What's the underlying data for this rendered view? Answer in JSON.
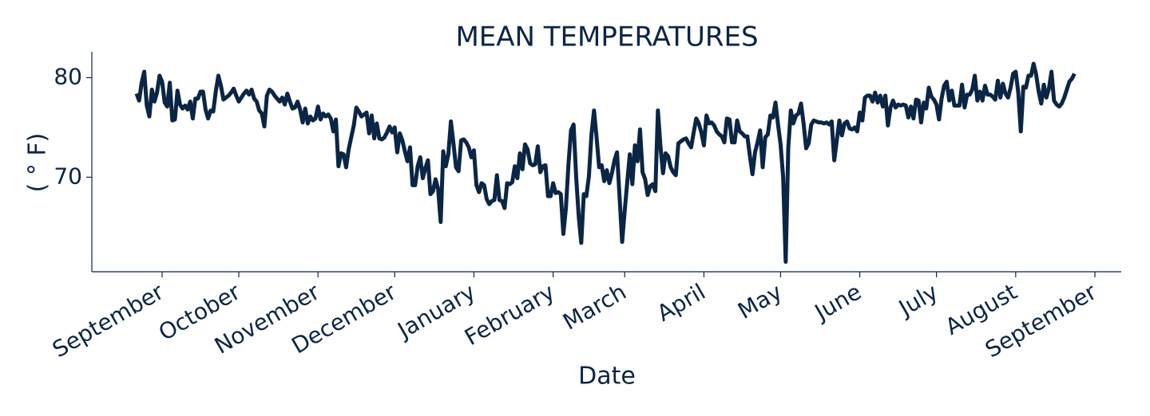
{
  "chart_data": {
    "type": "line",
    "title": "MEAN TEMPERATURES",
    "x_label": "Date",
    "y_label": "( ° F)",
    "color": "#0b2545",
    "x": [
      -10,
      -9,
      -8,
      -7,
      -6,
      -5,
      -4,
      -3,
      -2,
      -1,
      0,
      1,
      2,
      3,
      4,
      5,
      6,
      7,
      8,
      9,
      10,
      11,
      12,
      13,
      14,
      15,
      16,
      17,
      18,
      19,
      20,
      21,
      22,
      23,
      24,
      25,
      26,
      27,
      28,
      29,
      30,
      31,
      32,
      33,
      34,
      35,
      36,
      37,
      38,
      39,
      40,
      41,
      42,
      43,
      44,
      45,
      46,
      47,
      48,
      49,
      50,
      51,
      52,
      53,
      54,
      55,
      56,
      57,
      58,
      59,
      60,
      61,
      62,
      63,
      64,
      65,
      66,
      67,
      68,
      69,
      70,
      71,
      72,
      73,
      74,
      75,
      76,
      77,
      78,
      79,
      80,
      81,
      82,
      83,
      84,
      85,
      86,
      87,
      88,
      89,
      90,
      91,
      92,
      93,
      94,
      95,
      96,
      97,
      98,
      99,
      100,
      101,
      102,
      103,
      104,
      105,
      106,
      107,
      108,
      109,
      110,
      111,
      112,
      113,
      114,
      115,
      116,
      117,
      118,
      119,
      120,
      121,
      122,
      123,
      124,
      125,
      126,
      127,
      128,
      129,
      130,
      131,
      132,
      133,
      134,
      135,
      136,
      137,
      138,
      139,
      140,
      141,
      142,
      143,
      144,
      145,
      146,
      147,
      148,
      149,
      150,
      151,
      152,
      153,
      154,
      155,
      156,
      157,
      158,
      159,
      160,
      161,
      162,
      163,
      164,
      165,
      166,
      167,
      168,
      169,
      170,
      171,
      172,
      173,
      174,
      175,
      176,
      177,
      178,
      179,
      180,
      181,
      182,
      183,
      184,
      185,
      186,
      187,
      188,
      189,
      190,
      191,
      192,
      193,
      194,
      195,
      196,
      197,
      198,
      199,
      200,
      201,
      202,
      203,
      204,
      205,
      206,
      207,
      208,
      209,
      210,
      211,
      212,
      213,
      214,
      215,
      216,
      217,
      218,
      219,
      220,
      221,
      222,
      223,
      224,
      225,
      226,
      227,
      228,
      229,
      230,
      231,
      232,
      233,
      234,
      235,
      236,
      237,
      238,
      239,
      240,
      241,
      242,
      243,
      244,
      245,
      246,
      247,
      248,
      249,
      250,
      251,
      252,
      253,
      254,
      255,
      256,
      257,
      258,
      259,
      260,
      261,
      262,
      263,
      264,
      265,
      266,
      267,
      268,
      269,
      270,
      271,
      272,
      273,
      274,
      275,
      276,
      277,
      278,
      279,
      280,
      281,
      282,
      283,
      284,
      285,
      286,
      287,
      288,
      289,
      290,
      291,
      292,
      293,
      294,
      295,
      296,
      297,
      298,
      299,
      300,
      301,
      302,
      303,
      304,
      305,
      306,
      307,
      308,
      309,
      310,
      311,
      312,
      313,
      314,
      315,
      316,
      317,
      318,
      319,
      320,
      321,
      322,
      323,
      324,
      325,
      326,
      327,
      328,
      329,
      330,
      331,
      332,
      333,
      334,
      335,
      336,
      337,
      338,
      339,
      340,
      341,
      342,
      343,
      344,
      345,
      346,
      347,
      348,
      349,
      350,
      351,
      352,
      353,
      354,
      355,
      356,
      357
    ],
    "values": [
      78.4,
      77.7,
      79.5,
      80.6,
      77.2,
      76.1,
      78.8,
      77.6,
      78.5,
      80.2,
      79.6,
      77.5,
      77.1,
      79.5,
      75.7,
      75.8,
      78.7,
      77.3,
      76.9,
      77.2,
      76.8,
      77.6,
      75.9,
      77.9,
      77.9,
      78.6,
      78.6,
      76.8,
      75.9,
      76.7,
      76.6,
      78.6,
      80.2,
      79.2,
      77.8,
      78.0,
      78.2,
      78.5,
      78.9,
      78.2,
      77.6,
      78.0,
      78.4,
      78.7,
      78.3,
      78.8,
      77.9,
      77.6,
      76.7,
      76.4,
      75.1,
      78.2,
      78.8,
      78.6,
      78.2,
      77.9,
      77.6,
      78.0,
      77.3,
      78.4,
      77.6,
      76.9,
      77.0,
      77.6,
      76.8,
      75.5,
      76.9,
      75.4,
      76.1,
      75.7,
      75.9,
      77.1,
      75.8,
      76.4,
      76.1,
      76.3,
      75.9,
      74.6,
      75.8,
      71.1,
      72.4,
      72.3,
      71.0,
      72.8,
      74.0,
      75.2,
      77.0,
      76.6,
      76.1,
      76.3,
      76.5,
      74.4,
      76.2,
      73.9,
      75.4,
      73.9,
      73.8,
      74.0,
      74.5,
      75.1,
      74.5,
      75.0,
      72.5,
      74.4,
      73.7,
      72.6,
      71.6,
      73.0,
      69.2,
      69.2,
      71.1,
      72.0,
      69.9,
      70.9,
      71.7,
      68.3,
      68.6,
      69.8,
      68.8,
      65.5,
      72.6,
      71.1,
      72.3,
      75.6,
      73.4,
      71.0,
      70.6,
      73.7,
      73.8,
      73.5,
      73.0,
      72.0,
      72.7,
      69.2,
      68.5,
      69.4,
      69.2,
      67.8,
      67.3,
      67.6,
      67.7,
      70.2,
      67.7,
      67.6,
      66.9,
      69.4,
      69.3,
      69.5,
      71.1,
      69.9,
      72.4,
      70.8,
      73.3,
      72.8,
      71.4,
      71.2,
      71.3,
      73.1,
      70.5,
      71.1,
      71.2,
      68.1,
      68.1,
      69.4,
      68.4,
      68.5,
      68.3,
      64.3,
      66.9,
      71.3,
      74.7,
      75.3,
      70.1,
      66.1,
      63.4,
      68.3,
      68.1,
      70.1,
      74.3,
      76.7,
      74.0,
      71.0,
      71.2,
      69.6,
      70.7,
      69.4,
      70.4,
      71.7,
      72.5,
      68.0,
      63.5,
      66.6,
      69.5,
      72.3,
      69.3,
      73.2,
      71.6,
      74.8,
      70.5,
      69.8,
      68.2,
      69.1,
      69.3,
      68.6,
      76.7,
      73.1,
      70.4,
      72.4,
      72.1,
      71.0,
      70.5,
      70.2,
      73.4,
      73.6,
      73.8,
      73.9,
      73.4,
      73.0,
      74.5,
      75.9,
      75.4,
      74.5,
      73.2,
      76.2,
      75.4,
      75.5,
      75.2,
      74.6,
      74.3,
      74.1,
      73.5,
      75.9,
      75.8,
      73.5,
      73.5,
      75.7,
      74.6,
      74.4,
      74.1,
      74.1,
      72.1,
      70.3,
      72.5,
      73.5,
      74.7,
      71.0,
      74.0,
      74.3,
      76.2,
      76.0,
      77.5,
      75.3,
      73.3,
      70.0,
      61.5,
      72.9,
      76.7,
      75.4,
      76.2,
      76.4,
      77.4,
      75.4,
      72.9,
      73.4,
      75.3,
      75.7,
      75.6,
      75.5,
      75.5,
      75.4,
      75.5,
      75.3,
      75.6,
      71.7,
      73.7,
      75.7,
      74.2,
      75.4,
      75.6,
      74.9,
      74.8,
      75.0,
      74.6,
      76.5,
      75.7,
      78.0,
      78.2,
      78.2,
      77.6,
      78.5,
      77.5,
      78.2,
      77.1,
      78.2,
      75.2,
      77.0,
      77.7,
      77.0,
      77.3,
      77.2,
      77.3,
      77.2,
      76.0,
      77.1,
      75.9,
      77.8,
      77.7,
      75.5,
      77.5,
      76.9,
      79.0,
      78.1,
      77.8,
      77.3,
      75.8,
      77.9,
      79.2,
      79.6,
      77.7,
      78.7,
      77.2,
      77.2,
      77.2,
      79.3,
      77.0,
      78.3,
      78.3,
      78.8,
      80.2,
      77.7,
      78.6,
      77.7,
      79.2,
      78.3,
      78.3,
      78.1,
      77.8,
      79.7,
      78.0,
      79.4,
      78.4,
      78.0,
      79.0,
      80.4,
      80.6,
      78.5,
      74.6,
      79.1,
      79.0,
      80.2,
      80.2,
      81.4,
      80.3,
      78.6,
      77.4,
      79.3,
      78.0,
      78.9,
      80.6,
      77.7,
      77.3,
      77.1,
      77.4,
      78.0,
      78.8,
      79.6,
      79.9,
      80.4
    ],
    "xlim": [
      -27.5,
      375.3
    ],
    "xticks": [
      {
        "value": 0,
        "label": "September"
      },
      {
        "value": 30,
        "label": "October"
      },
      {
        "value": 61,
        "label": "November"
      },
      {
        "value": 91,
        "label": "December"
      },
      {
        "value": 122,
        "label": "January"
      },
      {
        "value": 153,
        "label": "February"
      },
      {
        "value": 181,
        "label": "March"
      },
      {
        "value": 212,
        "label": "April"
      },
      {
        "value": 242,
        "label": "May"
      },
      {
        "value": 273,
        "label": "June"
      },
      {
        "value": 303,
        "label": "July"
      },
      {
        "value": 334,
        "label": "August"
      },
      {
        "value": 365,
        "label": "September"
      }
    ],
    "ylim": [
      60.5,
      82.6
    ],
    "yticks": [
      70,
      80
    ],
    "grid": false
  }
}
